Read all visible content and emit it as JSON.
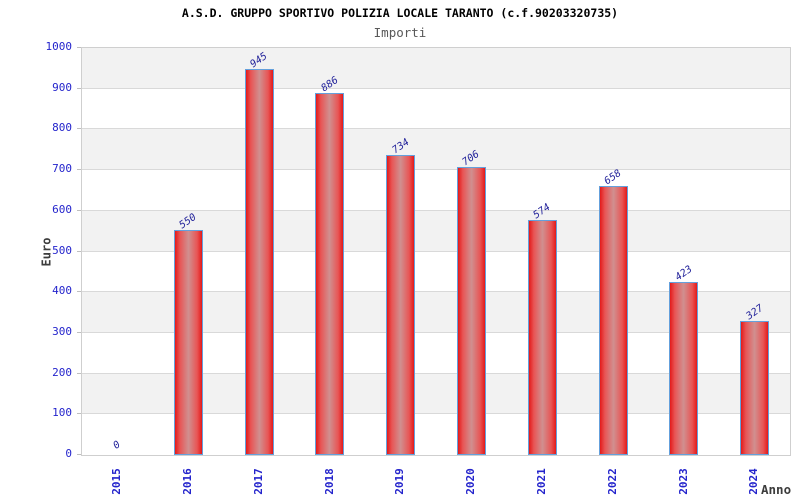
{
  "header": {
    "title": "A.S.D. GRUPPO SPORTIVO POLIZIA LOCALE TARANTO (c.f.90203320735)",
    "subtitle": "Importi"
  },
  "chart_data": {
    "type": "bar",
    "title": "A.S.D. GRUPPO SPORTIVO POLIZIA LOCALE TARANTO (c.f.90203320735)",
    "subtitle": "Importi",
    "categories": [
      "2015",
      "2016",
      "2017",
      "2018",
      "2019",
      "2020",
      "2021",
      "2022",
      "2023",
      "2024"
    ],
    "values": [
      0,
      550,
      945,
      886,
      734,
      706,
      574,
      658,
      423,
      327
    ],
    "xlabel": "Anno",
    "ylabel": "Euro",
    "ylim": [
      0,
      1000
    ],
    "ytick_step": 100,
    "yticks": [
      0,
      100,
      200,
      300,
      400,
      500,
      600,
      700,
      800,
      900,
      1000
    ],
    "grid": "horizontal gridlines every 100 with alternating shaded bands",
    "legend": "none",
    "bar_value_labels_shown": true,
    "bar_value_label_rotation_deg": -35,
    "x_tick_label_rotation_deg": -90,
    "colors": {
      "bar_edge": "#64a0dc",
      "bar_fill_edge": "#e31a1a",
      "bar_fill_center": "#d09090",
      "axis_tick_label": "#2424cc",
      "bar_value_label": "#1f1f99",
      "band": "#f2f2f2",
      "gridline": "#d9d9d9",
      "plot_border": "#cfcfcf",
      "title": "#000000",
      "subtitle": "#595959",
      "axis_title": "#3d3d3d"
    }
  }
}
